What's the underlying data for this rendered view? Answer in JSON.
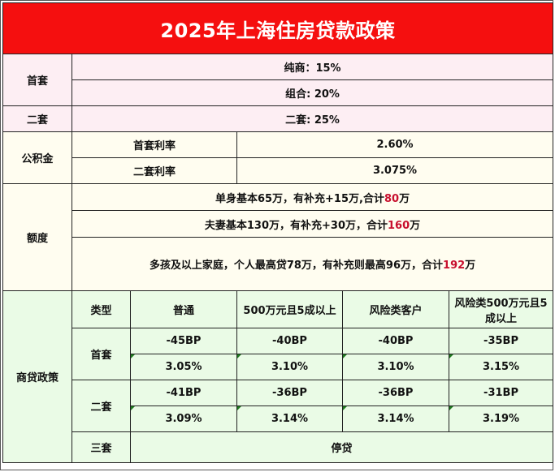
{
  "title": "2025年上海住房贷款政策",
  "down_payment": {
    "first_label": "首套",
    "first_values": [
      "纯商：15%",
      "组合: 20%"
    ],
    "second_label": "二套",
    "second_value": "二套: 25%"
  },
  "provident_fund": {
    "label": "公积金",
    "rows": [
      {
        "name": "首套利率",
        "value": "2.60%"
      },
      {
        "name": "二套利率",
        "value": "3.075%"
      }
    ]
  },
  "quota": {
    "label": "额度",
    "rows": [
      {
        "text": "单身基本65万，有补充+15万,合计",
        "highlight": "80",
        "suffix": "万"
      },
      {
        "text": "夫妻基本130万，有补充+30万，合计",
        "highlight": "160",
        "suffix": "万"
      },
      {
        "text": "多孩及以上家庭，个人最高贷78万，有补充则最高96万，合计",
        "highlight": "192",
        "suffix": "万"
      }
    ]
  },
  "commercial": {
    "label": "商贷政策",
    "headers": [
      "类型",
      "普通",
      "500万元且5成以上",
      "风险类客户",
      "风险类500万元且5成以上"
    ],
    "first": {
      "label": "首套",
      "bp": [
        "-45BP",
        "-40BP",
        "-40BP",
        "-35BP"
      ],
      "rate": [
        "3.05%",
        "3.10%",
        "3.10%",
        "3.15%"
      ]
    },
    "second": {
      "label": "二套",
      "bp": [
        "-41BP",
        "-36BP",
        "-36BP",
        "-31BP"
      ],
      "rate": [
        "3.09%",
        "3.14%",
        "3.14%",
        "3.19%"
      ]
    },
    "third": {
      "label": "三套",
      "value": "停贷"
    }
  }
}
